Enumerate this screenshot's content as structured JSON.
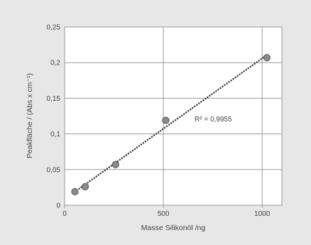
{
  "chart_data": {
    "type": "scatter",
    "xlabel": "Masse Silikonöl /ng",
    "ylabel": "Peakfläche / (Abs x cm⁻¹)",
    "xlim": [
      0,
      1100
    ],
    "ylim": [
      0,
      0.25
    ],
    "xticks": [
      0,
      500,
      1000
    ],
    "xtick_labels": [
      "0",
      "500",
      "1000"
    ],
    "yticks": [
      0,
      0.05,
      0.1,
      0.15,
      0.2,
      0.25
    ],
    "ytick_labels": [
      "0",
      "0,05",
      "0,1",
      "0,15",
      "0,2",
      "0,25"
    ],
    "grid": true,
    "series": [
      {
        "points": [
          {
            "x": 52,
            "y": 0.019
          },
          {
            "x": 104,
            "y": 0.026
          },
          {
            "x": 258,
            "y": 0.057
          },
          {
            "x": 512,
            "y": 0.119
          },
          {
            "x": 1024,
            "y": 0.207
          }
        ]
      }
    ],
    "trendline": {
      "type": "linear",
      "style": "dotted"
    },
    "annotation": "R² = 0,9955"
  },
  "colors": {
    "background": "#e7e7e7",
    "plot_area": "#ffffff",
    "grid": "#9a9a9a",
    "marker_fill": "#8a8a8a",
    "marker_stroke": "#555555",
    "trendline": "#3a3a3a",
    "text": "#444444"
  }
}
